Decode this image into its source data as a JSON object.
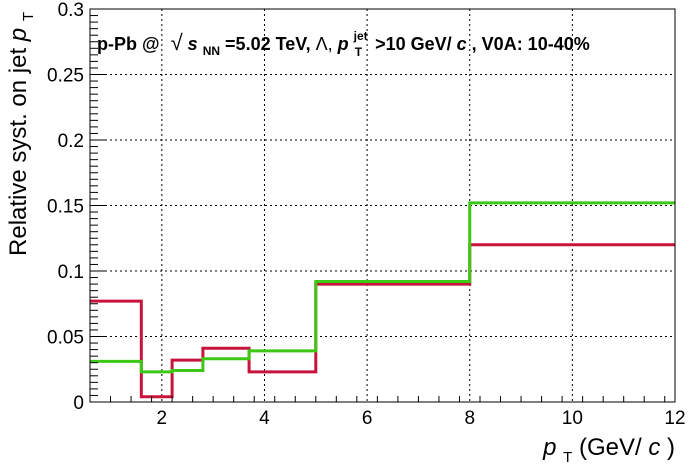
{
  "chart_data": {
    "type": "line",
    "style": "step-histogram",
    "annotation": {
      "system": "p-Pb @",
      "sqrt_symbol": "√",
      "s_var": "s",
      "s_sub": "NN",
      "energy": "=5.02 TeV, ",
      "particle": "Λ, ",
      "pt_var": "p",
      "pt_sub": "T",
      "pt_sup": "jet",
      "threshold": ">10 GeV/",
      "c": "c",
      "centrality": ", V0A: 10-40%"
    },
    "xlabel": {
      "var": "p",
      "sub": "T",
      "units_open": " (GeV/",
      "units_c": "c",
      "units_close": ")"
    },
    "ylabel": {
      "text": "Relative syst. on jet ",
      "var": "p",
      "sub": "T"
    },
    "xlim": [
      0.6,
      12
    ],
    "ylim": [
      0,
      0.3
    ],
    "x_ticks": [
      2,
      4,
      6,
      8,
      10,
      12
    ],
    "x_tick_labels": [
      "2",
      "4",
      "6",
      "8",
      "10",
      "12"
    ],
    "y_ticks": [
      0,
      0.05,
      0.1,
      0.15,
      0.2,
      0.25,
      0.3
    ],
    "y_tick_labels": [
      "0",
      "0.05",
      "0.1",
      "0.15",
      "0.2",
      "0.25",
      "0.3"
    ],
    "grid": true,
    "legend": "none",
    "bin_edges": [
      0.6,
      1.6,
      2.2,
      2.8,
      3.7,
      5.0,
      8.0,
      12.0
    ],
    "series": [
      {
        "color": "#c8143c",
        "values": [
          0.077,
          0.004,
          0.032,
          0.041,
          0.023,
          0.09,
          0.12
        ]
      },
      {
        "color": "#3cc814",
        "values": [
          0.031,
          0.023,
          0.024,
          0.033,
          0.039,
          0.092,
          0.152
        ]
      }
    ]
  }
}
